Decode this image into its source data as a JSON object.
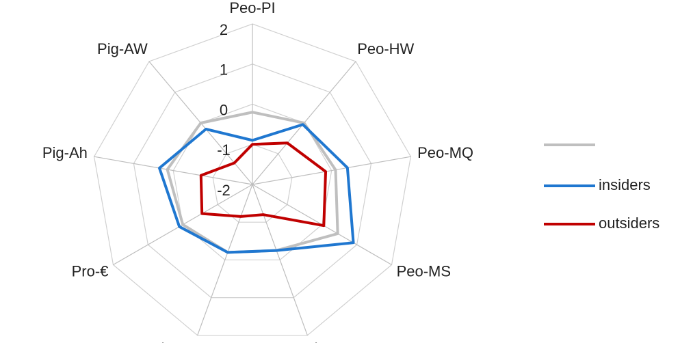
{
  "chart_data": {
    "type": "radar",
    "categories": [
      "Peo-PI",
      "Peo-HW",
      "Peo-MQ",
      "Peo-MS",
      "Pla-ENV",
      "Pla-GD",
      "Pro-€",
      "Pig-Ah",
      "Pig-AW"
    ],
    "ylim": [
      -2,
      2
    ],
    "yticks": [
      2,
      1,
      0,
      -1,
      -2
    ],
    "grid": true,
    "series": [
      {
        "color": "#bfbfbf",
        "values": [
          -0.2,
          0,
          0.1,
          0.45,
          -0.25,
          -0.2,
          0,
          0.15,
          0
        ]
      },
      {
        "name": "insiders",
        "color": "#1f77d0",
        "values": [
          -0.9,
          -0.05,
          0.4,
          0.9,
          -0.25,
          -0.2,
          0.1,
          0.35,
          -0.2
        ]
      },
      {
        "name": "outsiders",
        "color": "#c00000",
        "values": [
          -1,
          -0.65,
          -0.15,
          0.05,
          -1.2,
          -1.15,
          -0.55,
          -0.7,
          -1.3
        ]
      }
    ]
  }
}
